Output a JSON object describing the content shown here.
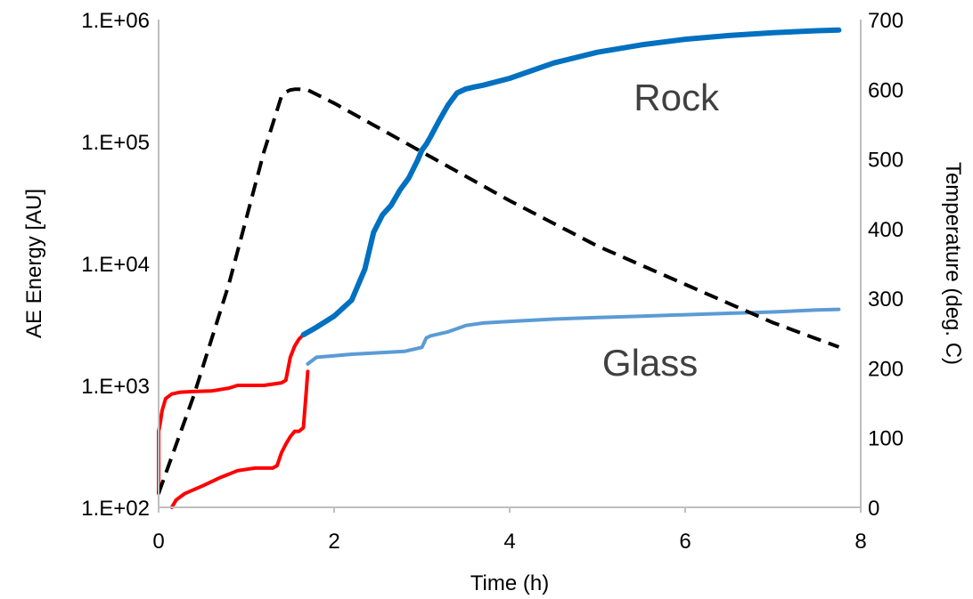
{
  "chart_data": {
    "type": "line",
    "title": "",
    "xlabel": "Time (h)",
    "ylabel": "AE Energy [AU]",
    "y2label": "Temperature (deg. C)",
    "xlim": [
      0,
      8
    ],
    "ylim": [
      100,
      1000000
    ],
    "y_scale": "log",
    "y2lim": [
      0,
      700
    ],
    "grid": false,
    "legend": "none",
    "x_ticks": [
      "0",
      "2",
      "4",
      "6",
      "8"
    ],
    "x_tick_values": [
      0,
      2,
      4,
      6,
      8
    ],
    "y_ticks": [
      "1.E+02",
      "1.E+03",
      "1.E+04",
      "1.E+05",
      "1.E+06"
    ],
    "y_tick_values": [
      100,
      1000,
      10000,
      100000,
      1000000
    ],
    "y2_ticks": [
      "0",
      "100",
      "200",
      "300",
      "400",
      "500",
      "600",
      "700"
    ],
    "y2_tick_values": [
      0,
      100,
      200,
      300,
      400,
      500,
      600,
      700
    ],
    "annotations": [
      {
        "text": "Rock",
        "x": 5.9,
        "y": 180000
      },
      {
        "text": "Glass",
        "x": 5.6,
        "y": 1200
      }
    ],
    "series": [
      {
        "key": "rock_heating",
        "axis": "left",
        "color": "#ff0000",
        "dash": false,
        "width": 4,
        "x": [
          0.0,
          0.0,
          0.02,
          0.04,
          0.08,
          0.15,
          0.25,
          0.4,
          0.6,
          0.8,
          0.9,
          1.0,
          1.2,
          1.4,
          1.45,
          1.5,
          1.55,
          1.6,
          1.65
        ],
        "y": [
          130,
          420,
          500,
          620,
          780,
          850,
          880,
          890,
          900,
          950,
          1000,
          1000,
          1000,
          1050,
          1100,
          1700,
          2100,
          2400,
          2600
        ]
      },
      {
        "key": "rock_cooling",
        "axis": "left",
        "color": "#0070c0",
        "dash": false,
        "width": 6,
        "x": [
          1.65,
          1.8,
          2.0,
          2.2,
          2.35,
          2.45,
          2.55,
          2.65,
          2.75,
          2.85,
          2.95,
          3.0,
          3.05,
          3.1,
          3.2,
          3.3,
          3.4,
          3.5,
          3.6,
          3.7,
          4.0,
          4.5,
          5.0,
          5.5,
          6.0,
          6.5,
          7.0,
          7.5,
          7.75
        ],
        "y": [
          2600,
          3000,
          3700,
          5000,
          9000,
          18000,
          25000,
          30000,
          40000,
          50000,
          70000,
          85000,
          95000,
          110000,
          150000,
          200000,
          250000,
          270000,
          280000,
          290000,
          330000,
          440000,
          540000,
          620000,
          690000,
          740000,
          780000,
          810000,
          820000
        ]
      },
      {
        "key": "glass_heating",
        "axis": "left",
        "color": "#ff0000",
        "dash": false,
        "width": 4,
        "x": [
          0.15,
          0.2,
          0.3,
          0.5,
          0.7,
          0.9,
          1.0,
          1.1,
          1.3,
          1.35,
          1.4,
          1.45,
          1.5,
          1.55,
          1.6,
          1.65,
          1.68,
          1.7
        ],
        "y": [
          100,
          115,
          130,
          150,
          175,
          200,
          205,
          210,
          210,
          220,
          280,
          330,
          380,
          420,
          420,
          450,
          850,
          1300
        ]
      },
      {
        "key": "glass_cooling",
        "axis": "left",
        "color": "#5b9bd5",
        "dash": false,
        "width": 4,
        "x": [
          1.7,
          1.8,
          2.0,
          2.2,
          2.5,
          2.8,
          3.0,
          3.05,
          3.1,
          3.3,
          3.5,
          3.7,
          4.0,
          4.5,
          5.0,
          5.5,
          6.0,
          6.5,
          7.0,
          7.5,
          7.75
        ],
        "y": [
          1500,
          1700,
          1750,
          1800,
          1850,
          1900,
          2050,
          2450,
          2550,
          2750,
          3100,
          3250,
          3350,
          3500,
          3600,
          3700,
          3800,
          3900,
          4000,
          4150,
          4200
        ]
      },
      {
        "key": "temperature",
        "axis": "right",
        "color": "#000000",
        "dash": true,
        "width": 4,
        "x": [
          0.0,
          0.4,
          0.8,
          1.2,
          1.4,
          1.45,
          1.5,
          1.55,
          1.6,
          1.7,
          2.0,
          3.0,
          4.0,
          5.0,
          6.0,
          7.0,
          7.75
        ],
        "y": [
          20,
          160,
          320,
          510,
          590,
          596,
          599,
          600,
          600,
          599,
          580,
          510,
          440,
          375,
          320,
          265,
          230
        ]
      }
    ]
  }
}
